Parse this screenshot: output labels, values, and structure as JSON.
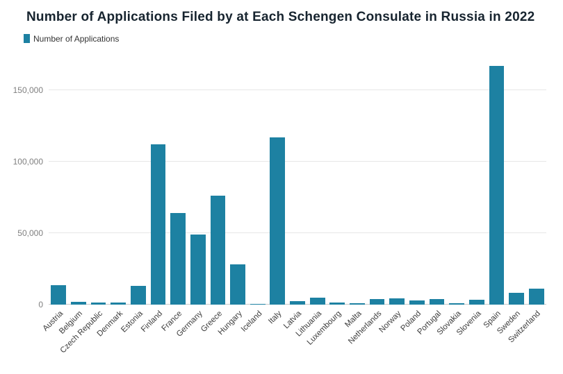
{
  "chart_data": {
    "type": "bar",
    "title": "Number of Applications Filed by at Each Schengen Consulate in Russia in 2022",
    "legend": "Number of Applications",
    "bar_color": "#1d81a2",
    "grid": true,
    "legend_position": "top-left",
    "xlabel": "",
    "ylabel": "",
    "ylim": [
      0,
      170000
    ],
    "yticks": [
      {
        "value": 0,
        "label": "0"
      },
      {
        "value": 50000,
        "label": "50,000"
      },
      {
        "value": 100000,
        "label": "100,000"
      },
      {
        "value": 150000,
        "label": "150,000"
      }
    ],
    "categories": [
      "Austria",
      "Belgium",
      "Czech Republic",
      "Denmark",
      "Estonia",
      "Finland",
      "France",
      "Germany",
      "Greece",
      "Hungary",
      "Iceland",
      "Italy",
      "Latvia",
      "Lithuania",
      "Luxembourg",
      "Malta",
      "Netherlands",
      "Norway",
      "Poland",
      "Portugal",
      "Slovakia",
      "Slovenia",
      "Spain",
      "Sweden",
      "Switzerland"
    ],
    "values": [
      13500,
      2000,
      1300,
      1600,
      13000,
      112000,
      64000,
      49000,
      76000,
      28000,
      400,
      117000,
      2200,
      5000,
      1200,
      700,
      3800,
      4200,
      2600,
      3600,
      900,
      3300,
      167000,
      8000,
      11000
    ]
  }
}
